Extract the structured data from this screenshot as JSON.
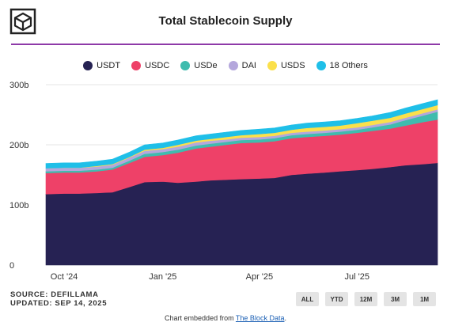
{
  "header": {
    "title": "Total Stablecoin Supply"
  },
  "legend": [
    {
      "label": "USDT",
      "color": "#262253"
    },
    {
      "label": "USDC",
      "color": "#ee4168"
    },
    {
      "label": "USDe",
      "color": "#3fbcae"
    },
    {
      "label": "DAI",
      "color": "#b4a7dc"
    },
    {
      "label": "USDS",
      "color": "#fbe04b"
    },
    {
      "label": "18 Others",
      "color": "#1fbfe8"
    }
  ],
  "footer": {
    "source": "SOURCE: DEFILLAMA",
    "updated": "UPDATED: SEP 14, 2025",
    "ranges": [
      "ALL",
      "YTD",
      "12M",
      "3M",
      "1M"
    ],
    "embed_prefix": "Chart embedded from ",
    "embed_link": "The Block Data",
    "embed_suffix": "."
  },
  "chart_data": {
    "type": "area",
    "stacked": true,
    "title": "Total Stablecoin Supply",
    "x": [
      "2024-09-14",
      "2024-10-01",
      "2024-10-15",
      "2024-11-01",
      "2024-11-15",
      "2024-12-01",
      "2024-12-15",
      "2025-01-01",
      "2025-01-15",
      "2025-02-01",
      "2025-02-15",
      "2025-03-01",
      "2025-03-15",
      "2025-04-01",
      "2025-04-15",
      "2025-05-01",
      "2025-05-15",
      "2025-06-01",
      "2025-06-15",
      "2025-07-01",
      "2025-07-15",
      "2025-08-01",
      "2025-08-15",
      "2025-09-01",
      "2025-09-14"
    ],
    "x_tick_labels": [
      "Oct '24",
      "Jan '25",
      "Apr '25",
      "Jul '25"
    ],
    "x_tick_dates": [
      "2024-10-01",
      "2025-01-01",
      "2025-04-01",
      "2025-07-01"
    ],
    "y_tick_labels": [
      "0",
      "100b",
      "200b",
      "300b"
    ],
    "y_tick_values": [
      0,
      100,
      200,
      300
    ],
    "ylim": [
      0,
      300
    ],
    "y_unit": "b",
    "grid": true,
    "legend_position": "top",
    "series": [
      {
        "name": "USDT",
        "color": "#262253",
        "values": [
          118,
          119,
          119,
          120,
          121,
          130,
          138,
          139,
          137,
          139,
          141,
          142,
          143,
          144,
          145,
          150,
          152,
          154,
          156,
          158,
          160,
          163,
          166,
          168,
          170
        ]
      },
      {
        "name": "USDC",
        "color": "#ee4168",
        "values": [
          35,
          35,
          35,
          36,
          38,
          40,
          42,
          44,
          50,
          55,
          56,
          58,
          60,
          60,
          61,
          61,
          61,
          61,
          61,
          62,
          63,
          64,
          66,
          70,
          72
        ]
      },
      {
        "name": "USDe",
        "color": "#3fbcae",
        "values": [
          3,
          3,
          3,
          3,
          3,
          4,
          5,
          5,
          5,
          5,
          5,
          5,
          5,
          5,
          5,
          5,
          5,
          5,
          5,
          5,
          6,
          7,
          9,
          11,
          13
        ]
      },
      {
        "name": "DAI",
        "color": "#b4a7dc",
        "values": [
          5,
          5,
          5,
          5,
          5,
          5,
          5,
          5,
          5,
          5,
          5,
          4,
          4,
          4,
          4,
          4,
          4,
          4,
          4,
          4,
          4,
          4,
          4,
          4,
          4
        ]
      },
      {
        "name": "USDS",
        "color": "#fbe04b",
        "values": [
          0,
          0,
          0,
          1,
          1,
          1,
          2,
          2,
          3,
          3,
          3,
          4,
          4,
          5,
          5,
          5,
          6,
          6,
          6,
          7,
          7,
          7,
          7,
          7,
          7
        ]
      },
      {
        "name": "18 Others",
        "color": "#1fbfe8",
        "values": [
          8,
          8,
          8,
          8,
          8,
          8,
          8,
          8,
          8,
          8,
          8,
          8,
          8,
          8,
          8,
          8,
          8,
          8,
          8,
          8,
          8,
          9,
          9,
          9,
          9
        ]
      }
    ]
  }
}
